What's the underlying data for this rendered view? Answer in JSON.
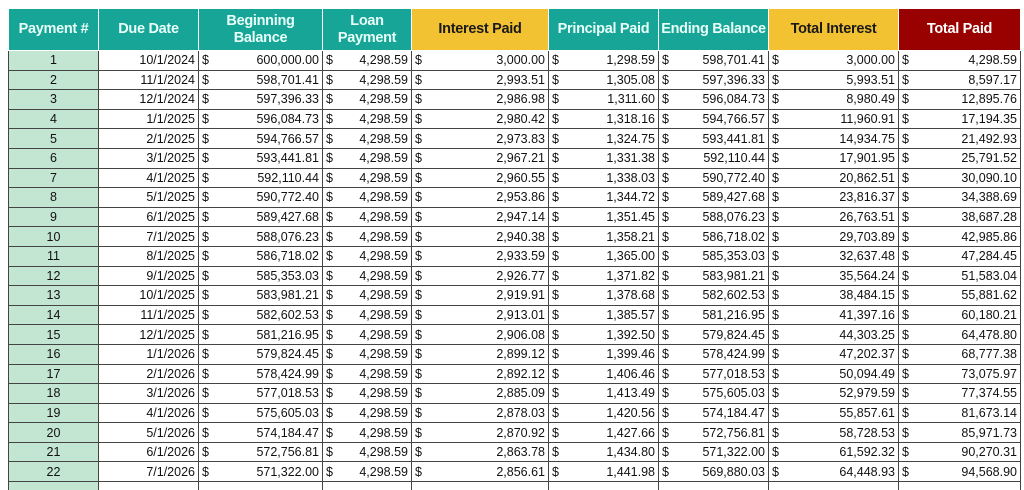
{
  "colors": {
    "teal": "#17a597",
    "yellow": "#f3c232",
    "red": "#990000",
    "payment_cell": "#c3e6d2"
  },
  "currency_symbol": "$",
  "headers": [
    {
      "label": "Payment #",
      "style": "teal"
    },
    {
      "label": "Due Date",
      "style": "teal"
    },
    {
      "label": "Beginning Balance",
      "style": "teal"
    },
    {
      "label": "Loan Payment",
      "style": "teal"
    },
    {
      "label": "Interest Paid",
      "style": "yellow"
    },
    {
      "label": "Principal Paid",
      "style": "teal"
    },
    {
      "label": "Ending Balance",
      "style": "teal"
    },
    {
      "label": "Total Interest",
      "style": "yellow"
    },
    {
      "label": "Total Paid",
      "style": "red"
    }
  ],
  "rows": [
    [
      "1",
      "10/1/2024",
      "600,000.00",
      "4,298.59",
      "3,000.00",
      "1,298.59",
      "598,701.41",
      "3,000.00",
      "4,298.59"
    ],
    [
      "2",
      "11/1/2024",
      "598,701.41",
      "4,298.59",
      "2,993.51",
      "1,305.08",
      "597,396.33",
      "5,993.51",
      "8,597.17"
    ],
    [
      "3",
      "12/1/2024",
      "597,396.33",
      "4,298.59",
      "2,986.98",
      "1,311.60",
      "596,084.73",
      "8,980.49",
      "12,895.76"
    ],
    [
      "4",
      "1/1/2025",
      "596,084.73",
      "4,298.59",
      "2,980.42",
      "1,318.16",
      "594,766.57",
      "11,960.91",
      "17,194.35"
    ],
    [
      "5",
      "2/1/2025",
      "594,766.57",
      "4,298.59",
      "2,973.83",
      "1,324.75",
      "593,441.81",
      "14,934.75",
      "21,492.93"
    ],
    [
      "6",
      "3/1/2025",
      "593,441.81",
      "4,298.59",
      "2,967.21",
      "1,331.38",
      "592,110.44",
      "17,901.95",
      "25,791.52"
    ],
    [
      "7",
      "4/1/2025",
      "592,110.44",
      "4,298.59",
      "2,960.55",
      "1,338.03",
      "590,772.40",
      "20,862.51",
      "30,090.10"
    ],
    [
      "8",
      "5/1/2025",
      "590,772.40",
      "4,298.59",
      "2,953.86",
      "1,344.72",
      "589,427.68",
      "23,816.37",
      "34,388.69"
    ],
    [
      "9",
      "6/1/2025",
      "589,427.68",
      "4,298.59",
      "2,947.14",
      "1,351.45",
      "588,076.23",
      "26,763.51",
      "38,687.28"
    ],
    [
      "10",
      "7/1/2025",
      "588,076.23",
      "4,298.59",
      "2,940.38",
      "1,358.21",
      "586,718.02",
      "29,703.89",
      "42,985.86"
    ],
    [
      "11",
      "8/1/2025",
      "586,718.02",
      "4,298.59",
      "2,933.59",
      "1,365.00",
      "585,353.03",
      "32,637.48",
      "47,284.45"
    ],
    [
      "12",
      "9/1/2025",
      "585,353.03",
      "4,298.59",
      "2,926.77",
      "1,371.82",
      "583,981.21",
      "35,564.24",
      "51,583.04"
    ],
    [
      "13",
      "10/1/2025",
      "583,981.21",
      "4,298.59",
      "2,919.91",
      "1,378.68",
      "582,602.53",
      "38,484.15",
      "55,881.62"
    ],
    [
      "14",
      "11/1/2025",
      "582,602.53",
      "4,298.59",
      "2,913.01",
      "1,385.57",
      "581,216.95",
      "41,397.16",
      "60,180.21"
    ],
    [
      "15",
      "12/1/2025",
      "581,216.95",
      "4,298.59",
      "2,906.08",
      "1,392.50",
      "579,824.45",
      "44,303.25",
      "64,478.80"
    ],
    [
      "16",
      "1/1/2026",
      "579,824.45",
      "4,298.59",
      "2,899.12",
      "1,399.46",
      "578,424.99",
      "47,202.37",
      "68,777.38"
    ],
    [
      "17",
      "2/1/2026",
      "578,424.99",
      "4,298.59",
      "2,892.12",
      "1,406.46",
      "577,018.53",
      "50,094.49",
      "73,075.97"
    ],
    [
      "18",
      "3/1/2026",
      "577,018.53",
      "4,298.59",
      "2,885.09",
      "1,413.49",
      "575,605.03",
      "52,979.59",
      "77,374.55"
    ],
    [
      "19",
      "4/1/2026",
      "575,605.03",
      "4,298.59",
      "2,878.03",
      "1,420.56",
      "574,184.47",
      "55,857.61",
      "81,673.14"
    ],
    [
      "20",
      "5/1/2026",
      "574,184.47",
      "4,298.59",
      "2,870.92",
      "1,427.66",
      "572,756.81",
      "58,728.53",
      "85,971.73"
    ],
    [
      "21",
      "6/1/2026",
      "572,756.81",
      "4,298.59",
      "2,863.78",
      "1,434.80",
      "571,322.00",
      "61,592.32",
      "90,270.31"
    ],
    [
      "22",
      "7/1/2026",
      "571,322.00",
      "4,298.59",
      "2,856.61",
      "1,441.98",
      "569,880.03",
      "64,448.93",
      "94,568.90"
    ]
  ]
}
